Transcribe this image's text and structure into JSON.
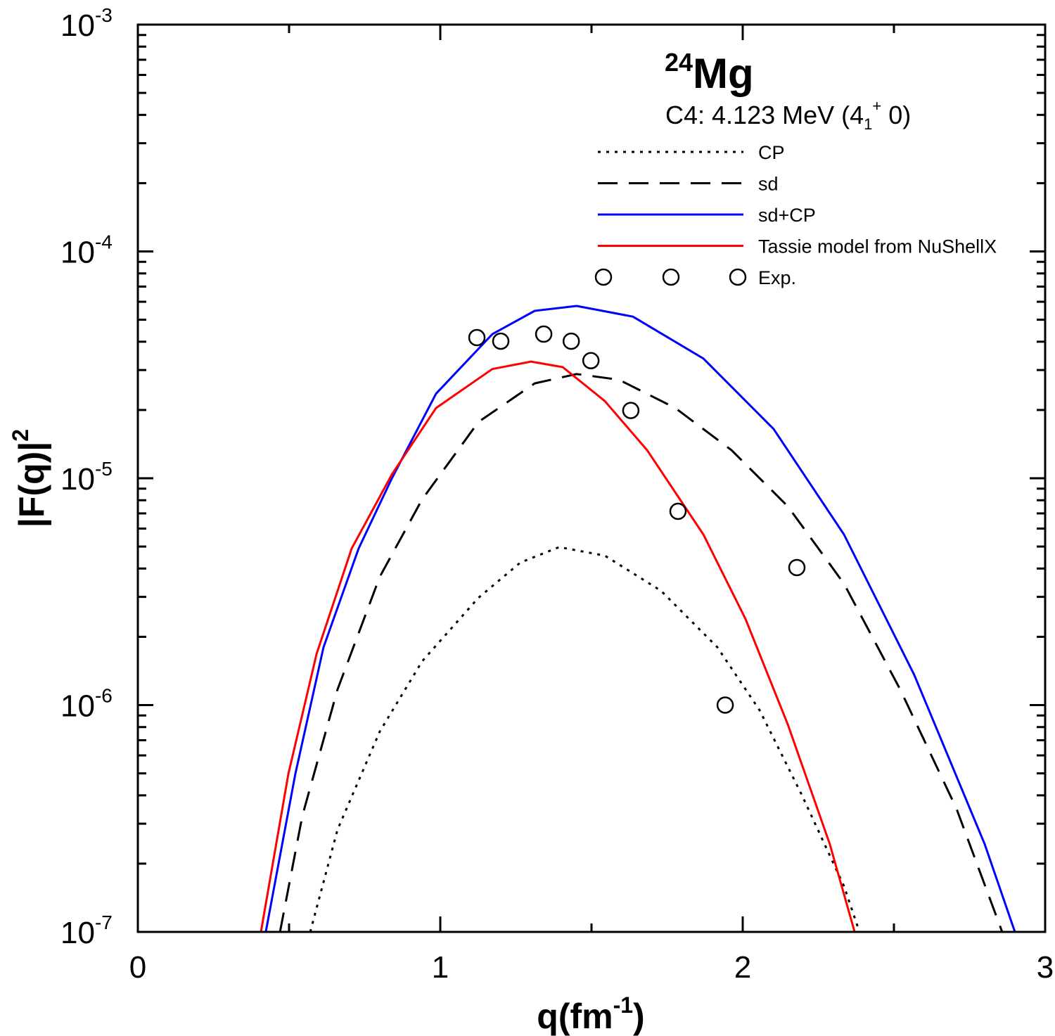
{
  "chart_data": {
    "type": "line",
    "title": {
      "isotope_mass": "24",
      "isotope_symbol": "Mg"
    },
    "subtitle": {
      "prefix": "C4:  4.123 MeV (4",
      "sub": "1",
      "sup": "+",
      "suffix": " 0)"
    },
    "xlabel": {
      "base": "q(fm",
      "sup": "-1",
      "close": ")"
    },
    "ylabel": {
      "base": "|F(q)|",
      "sup": "2"
    },
    "xlim": [
      0,
      3
    ],
    "ylim": [
      1e-07,
      0.001
    ],
    "yscale": "log",
    "grid": false,
    "legend_placement": "top-right",
    "x_ticks": [
      "0",
      "1",
      "2",
      "3"
    ],
    "y_ticks": [
      {
        "base": "10",
        "exp": "-3"
      },
      {
        "base": "10",
        "exp": "-4"
      },
      {
        "base": "10",
        "exp": "-5"
      },
      {
        "base": "10",
        "exp": "-6"
      },
      {
        "base": "10",
        "exp": "-7"
      }
    ],
    "series": [
      {
        "name": "CP",
        "style": "dotted",
        "color": "#000000",
        "x": [
          0.57,
          0.66,
          0.8,
          0.94,
          1.126,
          1.265,
          1.393,
          1.544,
          1.73,
          1.916,
          2.056,
          2.195,
          2.335,
          2.386
        ],
        "y": [
          1e-07,
          2.82e-07,
          7.65e-07,
          1.56e-06,
          2.97e-06,
          4.25e-06,
          4.97e-06,
          4.56e-06,
          3.19e-06,
          1.8e-06,
          9.48e-07,
          4.03e-07,
          1.59e-07,
          1e-07
        ]
      },
      {
        "name": "sd",
        "style": "dashed",
        "color": "#000000",
        "x": [
          0.47,
          0.544,
          0.66,
          0.8,
          0.94,
          1.126,
          1.312,
          1.451,
          1.591,
          1.777,
          1.963,
          2.149,
          2.335,
          2.521,
          2.707,
          2.858
        ],
        "y": [
          1e-07,
          3.25e-07,
          1.17e-06,
          3.68e-06,
          8.07e-06,
          1.77e-05,
          2.62e-05,
          2.88e-05,
          2.72e-05,
          2.04e-05,
          1.33e-05,
          7.52e-06,
          3.43e-06,
          1.17e-06,
          3.49e-07,
          1e-07
        ]
      },
      {
        "name": "sd+CP",
        "style": "solid",
        "color": "#0000ff",
        "x": [
          0.423,
          0.521,
          0.614,
          0.73,
          0.84,
          0.986,
          1.172,
          1.312,
          1.451,
          1.637,
          1.87,
          2.102,
          2.335,
          2.567,
          2.8,
          2.9
        ],
        "y": [
          1e-07,
          4.99e-07,
          1.8e-06,
          4.9e-06,
          1e-05,
          2.36e-05,
          4.32e-05,
          5.47e-05,
          5.75e-05,
          5.16e-05,
          3.37e-05,
          1.65e-05,
          5.65e-06,
          1.36e-06,
          2.44e-07,
          1e-07
        ]
      },
      {
        "name": "Tassie model from NuShellX",
        "style": "solid",
        "color": "#ff0000",
        "x": [
          0.407,
          0.498,
          0.591,
          0.707,
          0.84,
          0.986,
          1.172,
          1.3,
          1.405,
          1.544,
          1.684,
          1.87,
          2.009,
          2.149,
          2.288,
          2.37
        ],
        "y": [
          1e-07,
          4.99e-07,
          1.68e-06,
          4.9e-06,
          1.04e-05,
          2.04e-05,
          3.03e-05,
          3.27e-05,
          3.09e-05,
          2.19e-05,
          1.33e-05,
          5.65e-06,
          2.4e-06,
          8.22e-07,
          2.44e-07,
          1e-07
        ]
      },
      {
        "name": "Exp.",
        "style": "markers",
        "marker": "open-circle",
        "color": "#000000",
        "x": [
          1.121,
          1.2,
          1.342,
          1.433,
          1.498,
          1.63,
          1.786,
          1.942,
          2.179
        ],
        "y": [
          4.17e-05,
          4.02e-05,
          4.32e-05,
          4.02e-05,
          3.3e-05,
          1.99e-05,
          7.15e-06,
          1e-06,
          4.04e-06
        ]
      }
    ]
  }
}
